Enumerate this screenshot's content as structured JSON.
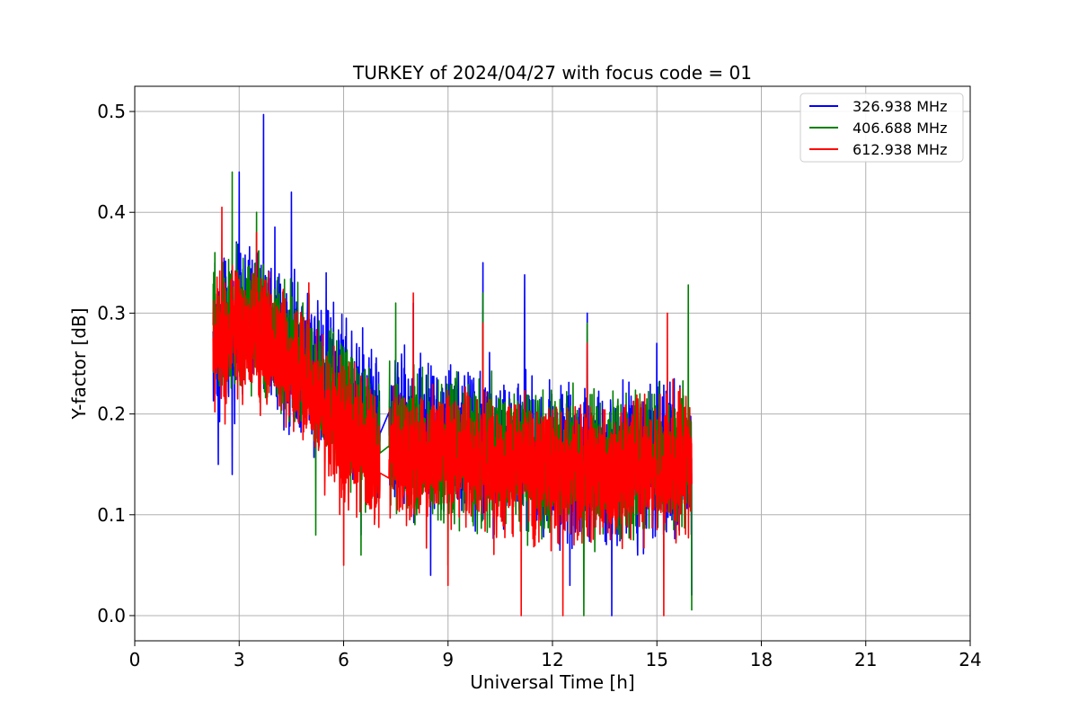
{
  "chart_data": {
    "type": "line",
    "title": "TURKEY of 2024/04/27 with focus code = 01",
    "xlabel": "Universal Time [h]",
    "ylabel": "Y-factor [dB]",
    "xlim": [
      0,
      24
    ],
    "ylim": [
      -0.025,
      0.525
    ],
    "xticks": [
      0,
      3,
      6,
      9,
      12,
      15,
      18,
      21,
      24
    ],
    "yticks": [
      0.0,
      0.1,
      0.2,
      0.3,
      0.4,
      0.5
    ],
    "xtick_labels": [
      "0",
      "3",
      "6",
      "9",
      "12",
      "15",
      "18",
      "21",
      "24"
    ],
    "ytick_labels": [
      "0.0",
      "0.1",
      "0.2",
      "0.3",
      "0.4",
      "0.5"
    ],
    "grid": true,
    "legend_position": "top-right",
    "x_range": [
      2.25,
      16.0
    ],
    "gap": [
      7.05,
      7.3
    ],
    "series": [
      {
        "name": "326.938 MHz",
        "color": "#0000ff",
        "mean_envelope": [
          [
            2.3,
            0.27
          ],
          [
            3.5,
            0.3
          ],
          [
            4.5,
            0.27
          ],
          [
            6.0,
            0.22
          ],
          [
            7.0,
            0.19
          ],
          [
            7.4,
            0.18
          ],
          [
            10.0,
            0.17
          ],
          [
            13.0,
            0.15
          ],
          [
            16.0,
            0.15
          ]
        ],
        "spread": 0.065,
        "peaks": [
          [
            2.3,
            0.35
          ],
          [
            3.0,
            0.44
          ],
          [
            3.7,
            0.497
          ],
          [
            4.5,
            0.42
          ],
          [
            5.5,
            0.34
          ],
          [
            6.5,
            0.3
          ],
          [
            8.0,
            0.31
          ],
          [
            10.0,
            0.35
          ],
          [
            11.2,
            0.338
          ],
          [
            13.0,
            0.3
          ],
          [
            15.0,
            0.27
          ]
        ],
        "troughs": [
          [
            2.4,
            0.15
          ],
          [
            2.8,
            0.14
          ],
          [
            6.5,
            0.08
          ],
          [
            8.5,
            0.04
          ],
          [
            12.5,
            0.03
          ],
          [
            13.7,
            0.0
          ],
          [
            16.0,
            0.02
          ]
        ]
      },
      {
        "name": "406.688 MHz",
        "color": "#008000",
        "mean_envelope": [
          [
            2.3,
            0.28
          ],
          [
            3.5,
            0.29
          ],
          [
            4.5,
            0.26
          ],
          [
            6.0,
            0.2
          ],
          [
            7.0,
            0.17
          ],
          [
            7.4,
            0.17
          ],
          [
            10.0,
            0.16
          ],
          [
            13.0,
            0.15
          ],
          [
            16.0,
            0.16
          ]
        ],
        "spread": 0.06,
        "peaks": [
          [
            2.3,
            0.36
          ],
          [
            2.8,
            0.44
          ],
          [
            3.5,
            0.4
          ],
          [
            5.0,
            0.32
          ],
          [
            7.5,
            0.31
          ],
          [
            10.0,
            0.32
          ],
          [
            13.0,
            0.29
          ],
          [
            15.9,
            0.328
          ]
        ],
        "troughs": [
          [
            5.2,
            0.08
          ],
          [
            6.5,
            0.06
          ],
          [
            9.0,
            0.05
          ],
          [
            12.9,
            0.0
          ],
          [
            16.0,
            0.005
          ]
        ]
      },
      {
        "name": "612.938 MHz",
        "color": "#ff0000",
        "mean_envelope": [
          [
            2.3,
            0.27
          ],
          [
            3.5,
            0.28
          ],
          [
            4.5,
            0.25
          ],
          [
            6.0,
            0.18
          ],
          [
            7.0,
            0.15
          ],
          [
            7.4,
            0.16
          ],
          [
            10.0,
            0.15
          ],
          [
            13.0,
            0.14
          ],
          [
            16.0,
            0.15
          ]
        ],
        "spread": 0.06,
        "peaks": [
          [
            2.5,
            0.405
          ],
          [
            3.5,
            0.38
          ],
          [
            5.0,
            0.33
          ],
          [
            8.0,
            0.32
          ],
          [
            10.0,
            0.29
          ],
          [
            13.0,
            0.27
          ],
          [
            15.3,
            0.3
          ]
        ],
        "troughs": [
          [
            6.0,
            0.05
          ],
          [
            9.0,
            0.03
          ],
          [
            11.1,
            0.0
          ],
          [
            12.3,
            0.0
          ],
          [
            15.2,
            0.0
          ]
        ]
      }
    ]
  }
}
